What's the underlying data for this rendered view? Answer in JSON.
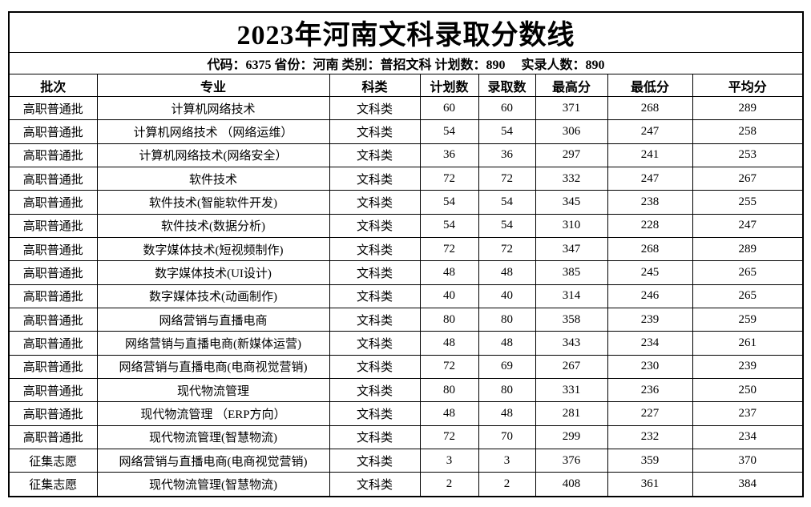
{
  "title": "2023年河南文科录取分数线",
  "meta_line": "代码：6375 省份：河南 类别：普招文科 计划数：890     实录人数：890",
  "meta": {
    "code_label": "代码",
    "code": "6375",
    "province_label": "省份",
    "province": "河南",
    "category_label": "类别",
    "category": "普招文科",
    "plan_total_label": "计划数",
    "plan_total": "890",
    "actual_total_label": "实录人数",
    "actual_total": "890"
  },
  "chart_data": {
    "type": "table",
    "title": "2023年河南文科录取分数线",
    "subtitle": "代码：6375 省份：河南 类别：普招文科 计划数：890     实录人数：890",
    "columns": [
      "批次",
      "专业",
      "科类",
      "计划数",
      "录取数",
      "最高分",
      "最低分",
      "平均分"
    ],
    "rows": [
      [
        "高职普通批",
        "计算机网络技术",
        "文科类",
        "60",
        "60",
        "371",
        "268",
        "289"
      ],
      [
        "高职普通批",
        "计算机网络技术 （网络运维）",
        "文科类",
        "54",
        "54",
        "306",
        "247",
        "258"
      ],
      [
        "高职普通批",
        "计算机网络技术(网络安全）",
        "文科类",
        "36",
        "36",
        "297",
        "241",
        "253"
      ],
      [
        "高职普通批",
        "软件技术",
        "文科类",
        "72",
        "72",
        "332",
        "247",
        "267"
      ],
      [
        "高职普通批",
        "软件技术(智能软件开发)",
        "文科类",
        "54",
        "54",
        "345",
        "238",
        "255"
      ],
      [
        "高职普通批",
        "软件技术(数据分析)",
        "文科类",
        "54",
        "54",
        "310",
        "228",
        "247"
      ],
      [
        "高职普通批",
        "数字媒体技术(短视频制作)",
        "文科类",
        "72",
        "72",
        "347",
        "268",
        "289"
      ],
      [
        "高职普通批",
        "数字媒体技术(UI设计)",
        "文科类",
        "48",
        "48",
        "385",
        "245",
        "265"
      ],
      [
        "高职普通批",
        "数字媒体技术(动画制作)",
        "文科类",
        "40",
        "40",
        "314",
        "246",
        "265"
      ],
      [
        "高职普通批",
        "网络营销与直播电商",
        "文科类",
        "80",
        "80",
        "358",
        "239",
        "259"
      ],
      [
        "高职普通批",
        "网络营销与直播电商(新媒体运营)",
        "文科类",
        "48",
        "48",
        "343",
        "234",
        "261"
      ],
      [
        "高职普通批",
        "网络营销与直播电商(电商视觉营销)",
        "文科类",
        "72",
        "69",
        "267",
        "230",
        "239"
      ],
      [
        "高职普通批",
        "现代物流管理",
        "文科类",
        "80",
        "80",
        "331",
        "236",
        "250"
      ],
      [
        "高职普通批",
        "现代物流管理 （ERP方向）",
        "文科类",
        "48",
        "48",
        "281",
        "227",
        "237"
      ],
      [
        "高职普通批",
        "现代物流管理(智慧物流)",
        "文科类",
        "72",
        "70",
        "299",
        "232",
        "234"
      ],
      [
        "征集志愿",
        "网络营销与直播电商(电商视觉营销)",
        "文科类",
        "3",
        "3",
        "376",
        "359",
        "370"
      ],
      [
        "征集志愿",
        "现代物流管理(智慧物流)",
        "文科类",
        "2",
        "2",
        "408",
        "361",
        "384"
      ]
    ]
  }
}
